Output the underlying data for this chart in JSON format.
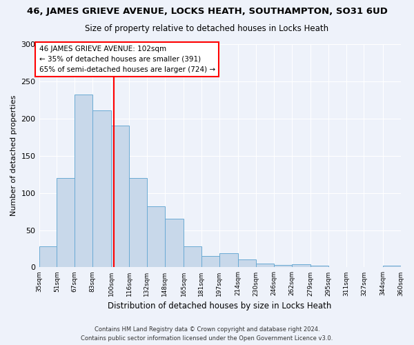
{
  "title": "46, JAMES GRIEVE AVENUE, LOCKS HEATH, SOUTHAMPTON, SO31 6UD",
  "subtitle": "Size of property relative to detached houses in Locks Heath",
  "xlabel": "Distribution of detached houses by size in Locks Heath",
  "ylabel": "Number of detached properties",
  "bar_color": "#c8d8ea",
  "bar_edge_color": "#6aaad4",
  "bg_color": "#eef2fa",
  "grid_color": "#ffffff",
  "vline_x": 102,
  "vline_color": "red",
  "annotation_line1": "46 JAMES GRIEVE AVENUE: 102sqm",
  "annotation_line2": "← 35% of detached houses are smaller (391)",
  "annotation_line3": "65% of semi-detached houses are larger (724) →",
  "footer_line1": "Contains HM Land Registry data © Crown copyright and database right 2024.",
  "footer_line2": "Contains public sector information licensed under the Open Government Licence v3.0.",
  "bin_edges": [
    35,
    51,
    67,
    83,
    100,
    116,
    132,
    148,
    165,
    181,
    197,
    214,
    230,
    246,
    262,
    279,
    295,
    311,
    327,
    344,
    360
  ],
  "bin_labels": [
    "35sqm",
    "51sqm",
    "67sqm",
    "83sqm",
    "100sqm",
    "116sqm",
    "132sqm",
    "148sqm",
    "165sqm",
    "181sqm",
    "197sqm",
    "214sqm",
    "230sqm",
    "246sqm",
    "262sqm",
    "279sqm",
    "295sqm",
    "311sqm",
    "327sqm",
    "344sqm",
    "360sqm"
  ],
  "counts": [
    28,
    120,
    232,
    211,
    191,
    120,
    82,
    65,
    28,
    15,
    19,
    11,
    5,
    3,
    4,
    2,
    0,
    0,
    0,
    2
  ],
  "ylim": [
    0,
    300
  ],
  "yticks": [
    0,
    50,
    100,
    150,
    200,
    250,
    300
  ]
}
